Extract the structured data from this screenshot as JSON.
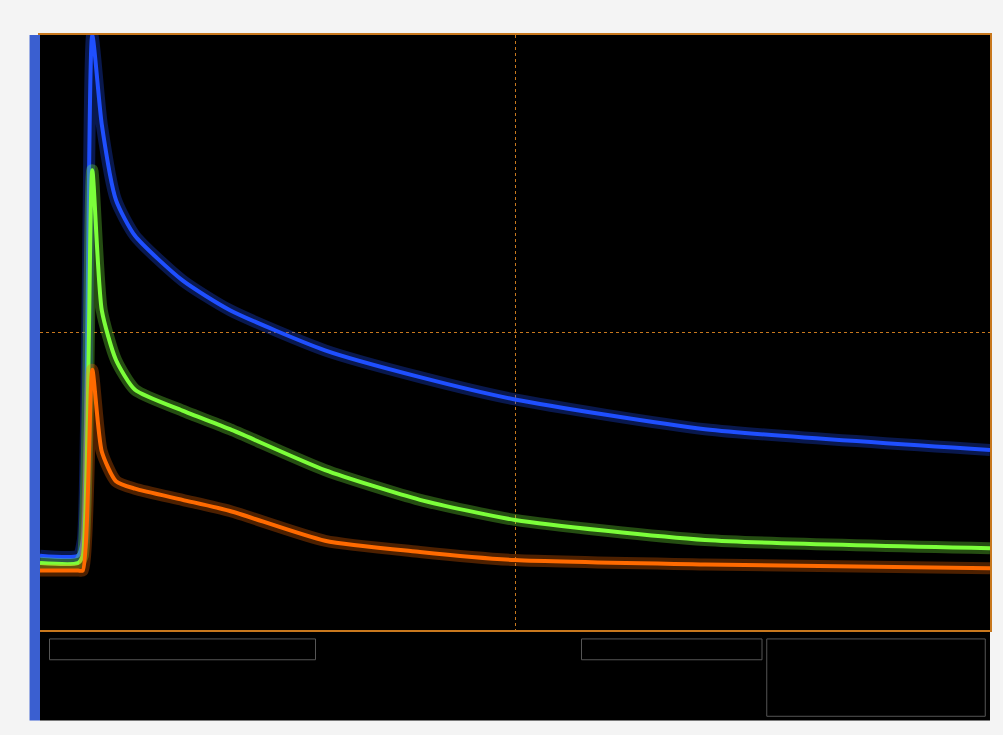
{
  "chart_data": {
    "type": "line",
    "x": [
      0,
      0.4,
      0.45,
      0.55,
      0.65,
      0.8,
      1,
      1.5,
      2,
      3,
      4,
      5,
      7,
      10
    ],
    "series": [
      {
        "color": "#1f4fff",
        "line_style": "solid",
        "values": [
          -3.0,
          -3.0,
          -2.8,
          4.0,
          2.8,
          1.78,
          1.3,
          0.7,
          0.3,
          -0.24,
          -0.6,
          -0.9,
          -1.3,
          -1.58
        ]
      },
      {
        "color": "#7cff3a",
        "line_style": "solid",
        "values": [
          -3.1,
          -3.1,
          -3.0,
          2.18,
          0.3,
          -0.37,
          -0.77,
          -1.05,
          -1.3,
          -1.85,
          -2.25,
          -2.52,
          -2.79,
          -2.9
        ]
      },
      {
        "color": "#ff6a00",
        "line_style": "solid",
        "values": [
          -3.2,
          -3.2,
          -3.2,
          -0.5,
          -1.6,
          -2.0,
          -2.1,
          -2.25,
          -2.4,
          -2.8,
          -2.95,
          -3.06,
          -3.12,
          -3.17
        ]
      }
    ],
    "xlim": [
      0,
      10
    ],
    "ylim": [
      -4,
      4
    ],
    "xticks": [
      5
    ],
    "yticks": [
      0
    ],
    "grid": true,
    "tick_labels": false
  }
}
